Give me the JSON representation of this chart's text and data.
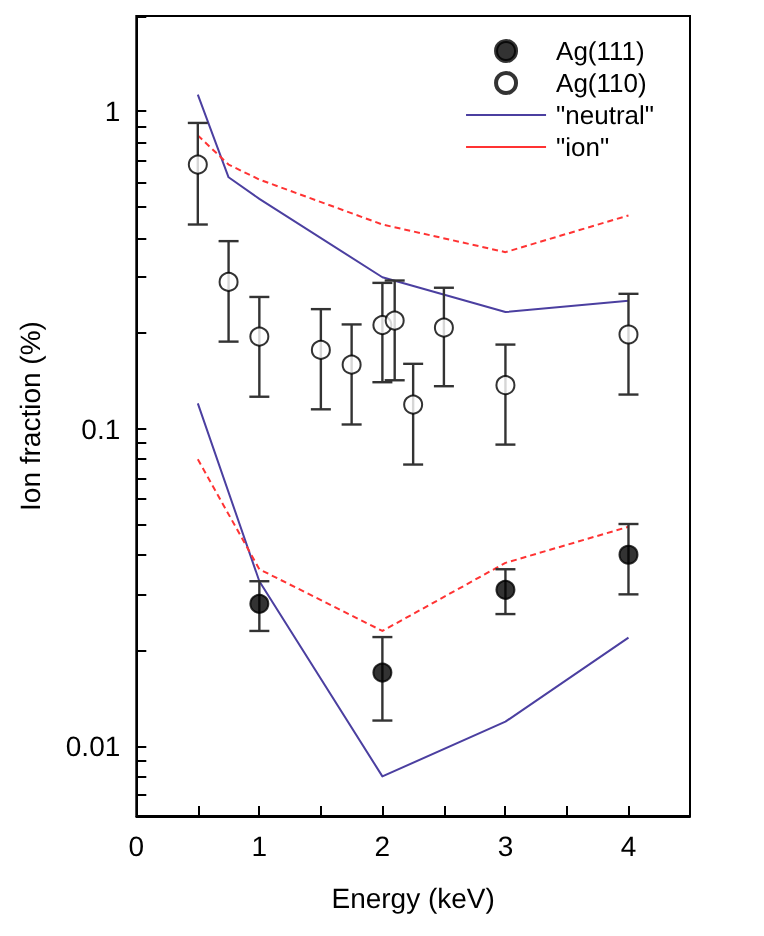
{
  "chart_data": {
    "type": "scatter",
    "xlabel": "Energy (keV)",
    "ylabel": "Ion fraction (%)",
    "log": "y",
    "xlim": [
      0,
      4.5
    ],
    "ylim": [
      0.006,
      2
    ],
    "xticks": [
      0,
      {
        "value": 0.5,
        "label": null
      },
      1,
      {
        "value": 1.5,
        "label": null
      },
      2,
      {
        "value": 2.5,
        "label": null
      },
      3,
      {
        "value": 3.5,
        "label": null
      },
      4
    ],
    "yticks": [
      {
        "value": 0.007,
        "label": null
      },
      {
        "value": 0.008,
        "label": null
      },
      {
        "value": 0.009,
        "label": null
      },
      0.01,
      {
        "value": 0.02,
        "label": null
      },
      {
        "value": 0.03,
        "label": null
      },
      {
        "value": 0.04,
        "label": null
      },
      {
        "value": 0.05,
        "label": null
      },
      {
        "value": 0.06,
        "label": null
      },
      {
        "value": 0.07,
        "label": null
      },
      {
        "value": 0.08,
        "label": null
      },
      {
        "value": 0.09,
        "label": null
      },
      0.1,
      {
        "value": 0.2,
        "label": null
      },
      {
        "value": 0.3,
        "label": null
      },
      {
        "value": 0.4,
        "label": null
      },
      {
        "value": 0.5,
        "label": null
      },
      {
        "value": 0.6,
        "label": null
      },
      {
        "value": 0.7,
        "label": null
      },
      {
        "value": 0.8,
        "label": null
      },
      {
        "value": 0.9,
        "label": null
      },
      1,
      {
        "value": 2,
        "label": null
      }
    ],
    "legend": "top right",
    "grid": false,
    "series": [
      {
        "name": "Ag(111)",
        "marker": "circle",
        "color": "#000000",
        "x": [
          1,
          2,
          3,
          4
        ],
        "values": [
          0.028,
          0.017,
          0.031,
          0.04
        ],
        "errors": [
          [
            0.023,
            0.033
          ],
          [
            0.012,
            0.022
          ],
          [
            0.026,
            0.036
          ],
          [
            0.03,
            0.05
          ]
        ]
      },
      {
        "name": "Ag(110)",
        "marker": "circle",
        "color": "#ffffff",
        "x": [
          0.5,
          0.75,
          1,
          1.5,
          1.75,
          2,
          2.1,
          2.25,
          2.5,
          3,
          4
        ],
        "values": [
          0.68,
          0.29,
          0.195,
          0.177,
          0.159,
          0.212,
          0.219,
          0.119,
          0.208,
          0.137,
          0.198
        ],
        "errors": [
          [
            0.44,
            0.92
          ],
          [
            0.188,
            0.39
          ],
          [
            0.126,
            0.26
          ],
          [
            0.115,
            0.238
          ],
          [
            0.103,
            0.213
          ],
          [
            0.14,
            0.288
          ],
          [
            0.142,
            0.293
          ],
          [
            0.077,
            0.16
          ],
          [
            0.136,
            0.278
          ],
          [
            0.089,
            0.184
          ],
          [
            0.128,
            0.266
          ]
        ]
      },
      {
        "name": "\"neutral\"",
        "type": "line",
        "marker": "none",
        "line_style": "solid",
        "color": "#4b3fa0",
        "x": [
          0.5,
          0.75,
          1,
          2,
          3,
          4
        ],
        "values": [
          1.13,
          0.62,
          0.53,
          0.3,
          0.233,
          0.253
        ]
      },
      {
        "name": "\"ion\"",
        "type": "line",
        "marker": "none",
        "line_style": "dashed",
        "color": "#ff3333",
        "x": [
          0.5,
          0.75,
          1,
          2,
          3,
          4
        ],
        "values": [
          0.84,
          0.68,
          0.61,
          0.44,
          0.36,
          0.47
        ]
      },
      {
        "type": "line",
        "marker": "none",
        "line_style": "solid",
        "color": "#4b3fa0",
        "x": [
          0.5,
          1,
          2,
          3,
          4
        ],
        "values": [
          0.12,
          0.033,
          0.008,
          0.0119,
          0.0219
        ]
      },
      {
        "type": "line",
        "marker": "none",
        "line_style": "dashed",
        "color": "#ff3333",
        "x": [
          0.5,
          1,
          2,
          3,
          4
        ],
        "values": [
          0.08,
          0.036,
          0.023,
          0.0377,
          0.049
        ]
      }
    ]
  }
}
